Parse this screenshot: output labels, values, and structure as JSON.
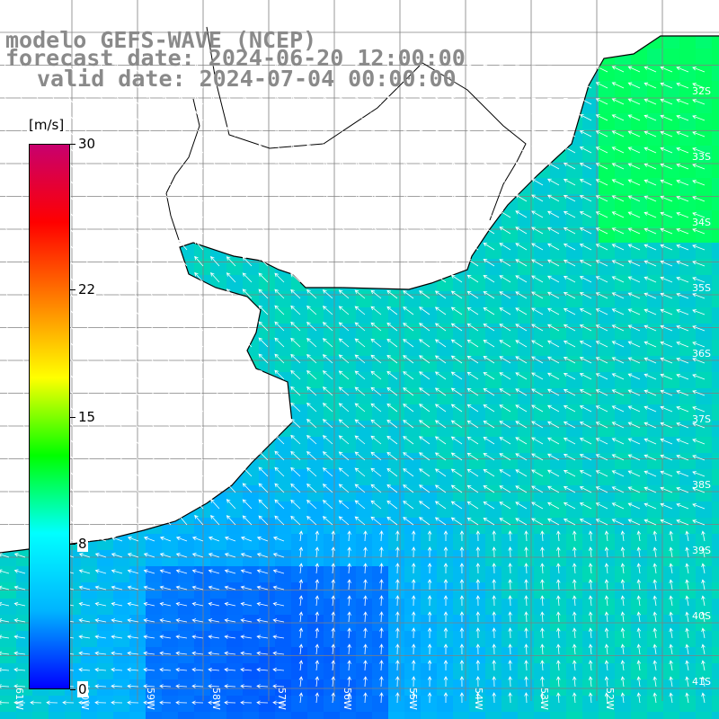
{
  "title": {
    "model": "modelo GEFS-WAVE (NCEP)",
    "forecast": "forecast date: 2024-06-20 12:00:00",
    "valid": "valid date: 2024-07-04 00:00:00"
  },
  "colorbar": {
    "unit": "[m/s]",
    "min": 0,
    "max": 30,
    "ticks": [
      {
        "value": 30,
        "label": "30"
      },
      {
        "value": 22,
        "label": "22"
      },
      {
        "value": 15,
        "label": "15"
      },
      {
        "value": 8,
        "label": "8"
      },
      {
        "value": 0,
        "label": "0"
      }
    ],
    "stops": [
      "#0000ff",
      "#00b4ff",
      "#00ffff",
      "#00ff00",
      "#ffff00",
      "#ff7f00",
      "#ff0000",
      "#c8006e"
    ]
  },
  "map": {
    "lat_labels": [
      "32S",
      "33S",
      "34S",
      "35S",
      "36S",
      "37S",
      "38S",
      "39S",
      "40S",
      "41S"
    ],
    "lon_labels": [
      "61W",
      "60W",
      "59W",
      "58W",
      "57W",
      "56W",
      "55W",
      "54W",
      "53W",
      "52W"
    ],
    "land_color": "#ffffff",
    "grid_color": "#808080",
    "coast_color": "#000000",
    "arrow_color": "#ffffff"
  }
}
